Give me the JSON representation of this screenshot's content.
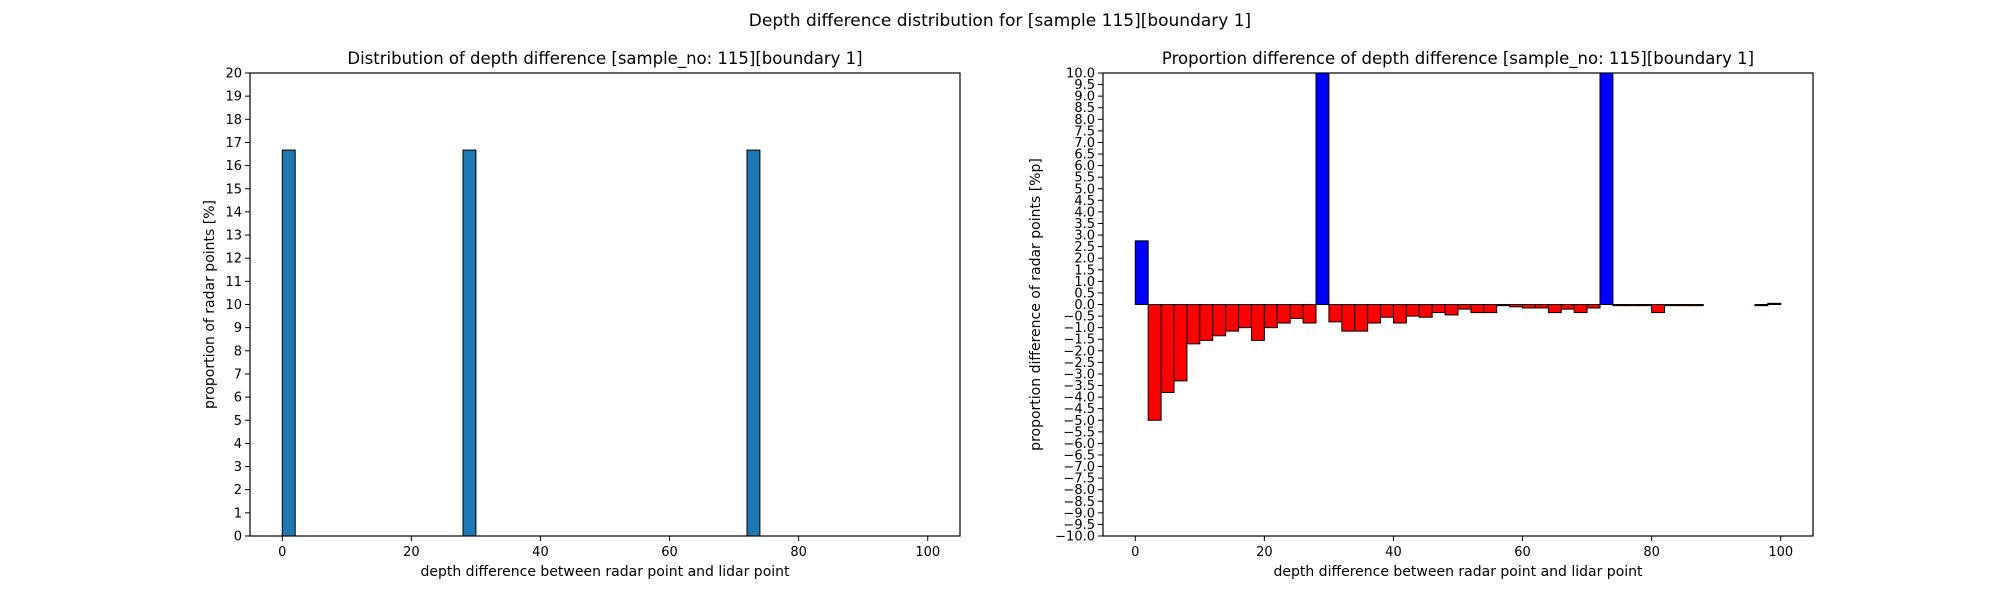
{
  "figure_title": "Depth difference distribution for [sample 115][boundary 1]",
  "chart_data": [
    {
      "type": "bar",
      "title": "Distribution of depth difference [sample_no: 115][boundary 1]",
      "xlabel": "depth difference between radar point and lidar point",
      "ylabel": "proportion of radar points [%]",
      "xlim": [
        -5,
        105
      ],
      "ylim": [
        0,
        20
      ],
      "xticks": [
        "0",
        "20",
        "40",
        "60",
        "80",
        "100"
      ],
      "yticks": [
        "0",
        "1",
        "2",
        "3",
        "4",
        "5",
        "6",
        "7",
        "8",
        "9",
        "10",
        "11",
        "12",
        "13",
        "14",
        "15",
        "16",
        "17",
        "18",
        "19",
        "20"
      ],
      "bin_width": 2,
      "bar_color": "#1f77b4",
      "x": [
        0,
        28,
        72
      ],
      "values": [
        16.67,
        16.67,
        16.67
      ]
    },
    {
      "type": "bar",
      "title": "Proportion difference of depth difference [sample_no: 115][boundary 1]",
      "xlabel": "depth difference between radar point and lidar point",
      "ylabel": "proportion difference of radar points [%p]",
      "xlim": [
        -5,
        105
      ],
      "ylim": [
        -10,
        10
      ],
      "xticks": [
        "0",
        "20",
        "40",
        "60",
        "80",
        "100"
      ],
      "yticks": [
        "−10.0",
        "−9.5",
        "−9.0",
        "−8.5",
        "−8.0",
        "−7.5",
        "−7.0",
        "−6.5",
        "−6.0",
        "−5.5",
        "−5.0",
        "−4.5",
        "−4.0",
        "−3.5",
        "−3.0",
        "−2.5",
        "−2.0",
        "−1.5",
        "−1.0",
        "−0.5",
        "0.0",
        "0.5",
        "1.0",
        "1.5",
        "2.0",
        "2.5",
        "3.0",
        "3.5",
        "4.0",
        "4.5",
        "5.0",
        "5.5",
        "6.0",
        "6.5",
        "7.0",
        "7.5",
        "8.0",
        "8.5",
        "9.0",
        "9.5",
        "10.0"
      ],
      "bin_width": 2,
      "positive_color": "#0000ff",
      "negative_color": "#ff0000",
      "x": [
        0,
        2,
        4,
        6,
        8,
        10,
        12,
        14,
        16,
        18,
        20,
        22,
        24,
        26,
        28,
        30,
        32,
        34,
        36,
        38,
        40,
        42,
        44,
        46,
        48,
        50,
        52,
        54,
        56,
        58,
        60,
        62,
        64,
        66,
        68,
        70,
        72,
        74,
        76,
        78,
        80,
        82,
        84,
        86,
        88,
        90,
        92,
        94,
        96,
        98
      ],
      "values": [
        2.75,
        -5.0,
        -3.8,
        -3.3,
        -1.7,
        -1.55,
        -1.35,
        -1.15,
        -1.0,
        -1.55,
        -1.0,
        -0.8,
        -0.6,
        -0.8,
        10.0,
        -0.75,
        -1.15,
        -1.15,
        -0.8,
        -0.55,
        -0.8,
        -0.5,
        -0.55,
        -0.35,
        -0.45,
        -0.2,
        -0.35,
        -0.35,
        -0.05,
        -0.1,
        -0.15,
        -0.15,
        -0.35,
        -0.2,
        -0.35,
        -0.15,
        10.0,
        -0.05,
        -0.05,
        -0.05,
        -0.35,
        -0.05,
        -0.05,
        -0.05,
        0.0,
        0.0,
        0.0,
        0.0,
        -0.05,
        0.05
      ]
    }
  ]
}
